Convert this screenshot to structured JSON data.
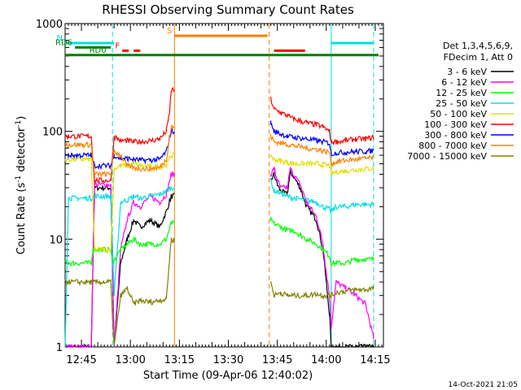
{
  "chart_data": {
    "type": "line",
    "title": "RHESSI Observing Summary Count Rates",
    "xlabel": "Start Time (09-Apr-06 12:40:02)",
    "ylabel_main": "Count Rate (s",
    "ylabel_sup1": "-1",
    "ylabel_mid": " detector",
    "ylabel_sup2": "-1",
    "ylabel_end": ")",
    "y_scale": "log",
    "ylim": [
      1,
      1000
    ],
    "xlim_minutes": [
      40.0,
      77.5
    ],
    "yticks": [
      {
        "value": 1,
        "label": "1"
      },
      {
        "value": 10,
        "label": "10"
      },
      {
        "value": 100,
        "label": "100"
      },
      {
        "value": 1000,
        "label": "1000"
      }
    ],
    "xticks": [
      {
        "minute": 45,
        "label": "12:45"
      },
      {
        "minute": 60,
        "label": "13:00"
      },
      {
        "minute": 75,
        "label": "13:15"
      },
      {
        "minute": 90,
        "label": "13:30"
      },
      {
        "minute": 105,
        "label": "13:45"
      },
      {
        "minute": 120,
        "label": "14:00"
      },
      {
        "minute": 135,
        "label": "14:15"
      }
    ],
    "legend_header": [
      "Det 1,3,4,5,6,9,",
      "FDecim 1, Att 0"
    ],
    "legend_placement": "right",
    "timestamp": "14-Oct-2021 21:05",
    "flags": [
      {
        "label": "N",
        "color": "#00e0e0",
        "segments": [
          [
            40,
            55
          ],
          [
            121.5,
            134.5
          ]
        ],
        "level": 660
      },
      {
        "label": "F",
        "color": "#ff0000",
        "segments": [
          [
            57.5,
            59.5
          ],
          [
            61,
            63
          ],
          [
            104,
            113.5
          ]
        ],
        "level": 560
      },
      {
        "label": "S",
        "color": "#ff8000",
        "segments": [
          [
            73.5,
            102
          ]
        ],
        "level": 770
      },
      {
        "label": "RD0",
        "color": "#008000",
        "segments": [
          [
            40,
            136
          ]
        ],
        "level": 510
      },
      {
        "label": "RD6",
        "color": "#008000",
        "segments": [
          [
            43,
            54
          ]
        ],
        "level": 600
      }
    ],
    "vlines": [
      {
        "minute": 54.5,
        "color": "#00e0e0",
        "style": "dashed"
      },
      {
        "minute": 73.5,
        "color": "#ff8000",
        "style": "solid"
      },
      {
        "minute": 102.5,
        "color": "#ff8000",
        "style": "dashed"
      },
      {
        "minute": 121.5,
        "color": "#00e0e0",
        "style": "solid"
      },
      {
        "minute": 134.5,
        "color": "#00e0e0",
        "style": "dashed"
      }
    ],
    "gap_minutes": [
      73.5,
      103.0
    ],
    "series": [
      {
        "name": "3 - 6 keV",
        "color": "#000000",
        "x": [
          40,
          48,
          49,
          54,
          55,
          57,
          59,
          61,
          63,
          66,
          69,
          71,
          72.5,
          103,
          104,
          105,
          106,
          108,
          109,
          110,
          112,
          114,
          117,
          119,
          120,
          121,
          121.5,
          123,
          126,
          129,
          132,
          134.5
        ],
        "y": [
          1,
          1,
          30,
          30,
          1,
          6,
          10,
          15,
          13,
          15,
          13,
          18,
          25,
          35,
          40,
          32,
          28,
          26,
          42,
          38,
          30,
          20,
          15,
          8,
          4,
          2,
          1,
          1,
          1,
          1,
          1,
          1
        ]
      },
      {
        "name": "6 - 12 keV",
        "color": "#ff00ff",
        "x": [
          40,
          48,
          49,
          54,
          55,
          57,
          59,
          61,
          63,
          66,
          69,
          71,
          72.5,
          103,
          104,
          105,
          106,
          108,
          109,
          110,
          112,
          114,
          117,
          119,
          120,
          121,
          121.5,
          123,
          126,
          129,
          132,
          134.5
        ],
        "y": [
          1,
          1,
          32,
          32,
          1,
          8,
          15,
          22,
          20,
          25,
          22,
          26,
          40,
          40,
          45,
          35,
          30,
          30,
          45,
          40,
          32,
          22,
          16,
          9,
          5,
          3,
          1.5,
          4,
          3.5,
          3,
          2.5,
          1.2
        ]
      },
      {
        "name": "12 - 25 keV",
        "color": "#00ff00",
        "x": [
          40,
          41,
          48,
          48.5,
          54,
          54.5,
          57,
          59,
          61,
          63,
          66,
          69,
          71,
          72.5,
          103,
          104,
          106,
          108,
          110,
          112,
          114,
          117,
          119,
          121,
          121.5,
          123,
          126,
          129,
          132,
          134.5
        ],
        "y": [
          6,
          6,
          6,
          8,
          8,
          6,
          8,
          9,
          10,
          9,
          9,
          9,
          10,
          14,
          15,
          14,
          13,
          12,
          12,
          11,
          10,
          9,
          8,
          7,
          6,
          6,
          6,
          6.5,
          6.5,
          6.5
        ]
      },
      {
        "name": "25 - 50 keV",
        "color": "#00e0e0",
        "x": [
          40,
          41,
          42,
          48,
          49,
          54,
          55,
          57,
          59,
          61,
          63,
          66,
          69,
          71,
          72.5,
          103,
          104,
          106,
          108,
          110,
          114,
          117,
          119,
          121,
          121.5,
          123,
          126,
          129,
          132,
          134.5
        ],
        "y": [
          1,
          24,
          24,
          24,
          25,
          25,
          3,
          22,
          23,
          25,
          24,
          25,
          26,
          28,
          30,
          35,
          28,
          27,
          25,
          24,
          23,
          22,
          20,
          19,
          18,
          20,
          20,
          21,
          21,
          21
        ]
      },
      {
        "name": "50 - 100 keV",
        "color": "#e0e000",
        "x": [
          40,
          41,
          48,
          49,
          54,
          55,
          57,
          59,
          61,
          63,
          66,
          69,
          71,
          72.5,
          103,
          104,
          106,
          108,
          110,
          114,
          117,
          119,
          121,
          121.5,
          123,
          126,
          129,
          132,
          134.5
        ],
        "y": [
          55,
          55,
          55,
          8,
          8,
          45,
          48,
          48,
          50,
          48,
          47,
          47,
          48,
          60,
          60,
          55,
          53,
          52,
          50,
          50,
          50,
          49,
          48,
          40,
          42,
          43,
          44,
          45,
          45
        ]
      },
      {
        "name": "100 - 300 keV",
        "color": "#ff0000",
        "x": [
          40,
          41,
          48,
          49,
          54,
          55,
          57,
          59,
          61,
          63,
          66,
          69,
          71,
          72,
          72.5,
          103,
          104,
          106,
          108,
          110,
          114,
          117,
          119,
          121,
          121.5,
          123,
          126,
          129,
          132,
          134.5
        ],
        "y": [
          90,
          90,
          90,
          35,
          35,
          90,
          82,
          82,
          80,
          80,
          82,
          85,
          100,
          150,
          240,
          200,
          160,
          150,
          140,
          130,
          120,
          115,
          110,
          100,
          80,
          80,
          82,
          85,
          85,
          88
        ]
      },
      {
        "name": "300 - 800 keV",
        "color": "#0000ff",
        "x": [
          40,
          41,
          48,
          49,
          54,
          55,
          57,
          59,
          61,
          63,
          66,
          69,
          71,
          72.5,
          103,
          104,
          106,
          108,
          110,
          114,
          117,
          119,
          121,
          121.5,
          123,
          126,
          129,
          132,
          134.5
        ],
        "y": [
          60,
          60,
          60,
          48,
          48,
          60,
          56,
          56,
          55,
          54,
          54,
          55,
          65,
          100,
          120,
          100,
          95,
          90,
          88,
          85,
          82,
          80,
          78,
          62,
          63,
          64,
          65,
          65,
          66
        ]
      },
      {
        "name": "800 - 7000 keV",
        "color": "#ff8000",
        "x": [
          40,
          41,
          48,
          49,
          54,
          55,
          57,
          59,
          61,
          63,
          66,
          69,
          71,
          72.5,
          103,
          104,
          106,
          108,
          110,
          114,
          117,
          119,
          121,
          121.5,
          123,
          126,
          129,
          132,
          134.5
        ],
        "y": [
          75,
          75,
          75,
          40,
          40,
          65,
          60,
          48,
          46,
          45,
          45,
          46,
          55,
          110,
          90,
          80,
          78,
          76,
          74,
          70,
          68,
          66,
          64,
          50,
          52,
          54,
          55,
          56,
          57
        ]
      },
      {
        "name": "7000 - 15000 keV",
        "color": "#808000",
        "x": [
          40,
          41,
          48,
          49,
          54,
          55,
          57,
          59,
          61,
          63,
          66,
          69,
          71,
          72.5,
          103,
          104,
          106,
          108,
          110,
          114,
          117,
          119,
          121,
          121.5,
          123,
          126,
          129,
          132,
          134.5
        ],
        "y": [
          4,
          4,
          4,
          4,
          4,
          1,
          3,
          3.5,
          2.5,
          2.7,
          2.6,
          2.7,
          2.8,
          10,
          4,
          3,
          3.2,
          3,
          3,
          3,
          3.1,
          3,
          3,
          3,
          3.2,
          3.3,
          3.4,
          3.4,
          3.5
        ]
      }
    ]
  }
}
